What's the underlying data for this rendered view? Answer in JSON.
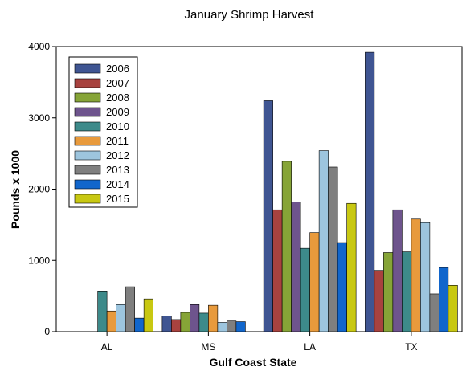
{
  "chart_data": {
    "type": "bar",
    "title": "January Shrimp Harvest",
    "xlabel": "Gulf Coast State",
    "ylabel": "Pounds x 1000",
    "categories": [
      "AL",
      "MS",
      "LA",
      "TX"
    ],
    "ylim": [
      0,
      4000
    ],
    "yticks": [
      "0",
      "1000",
      "2000",
      "3000",
      "4000"
    ],
    "grid": false,
    "legend_position": "top-left",
    "series": [
      {
        "name": "2006",
        "color": "#3F5592",
        "values": [
          0,
          220,
          3240,
          3920
        ]
      },
      {
        "name": "2007",
        "color": "#A8423F",
        "values": [
          0,
          170,
          1710,
          860
        ]
      },
      {
        "name": "2008",
        "color": "#86A437",
        "values": [
          0,
          270,
          2390,
          1110
        ]
      },
      {
        "name": "2009",
        "color": "#6E548D",
        "values": [
          0,
          380,
          1820,
          1710
        ]
      },
      {
        "name": "2010",
        "color": "#3D8A8A",
        "values": [
          560,
          260,
          1170,
          1120
        ]
      },
      {
        "name": "2011",
        "color": "#E89A3C",
        "values": [
          290,
          370,
          1390,
          1580
        ]
      },
      {
        "name": "2012",
        "color": "#9DC5DE",
        "values": [
          380,
          130,
          2540,
          1530
        ]
      },
      {
        "name": "2013",
        "color": "#7F7F7F",
        "values": [
          630,
          150,
          2310,
          530
        ]
      },
      {
        "name": "2014",
        "color": "#1166CC",
        "values": [
          190,
          140,
          1250,
          900
        ]
      },
      {
        "name": "2015",
        "color": "#C8C812",
        "values": [
          460,
          0,
          1800,
          650
        ]
      }
    ]
  }
}
